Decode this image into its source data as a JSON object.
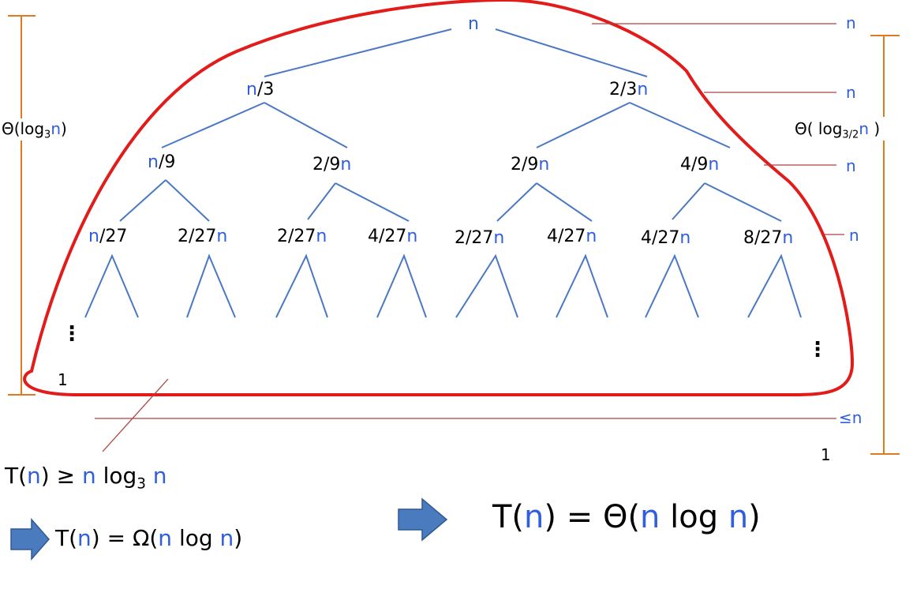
{
  "tree": {
    "root": "n",
    "level1": [
      {
        "pre": "n",
        "post": "/3"
      },
      {
        "pre": "2/3",
        "post": "n"
      }
    ],
    "level2": [
      {
        "pre": "n",
        "post": "/9"
      },
      {
        "pre": "2/9",
        "post": "n"
      },
      {
        "pre": "2/9",
        "post": "n"
      },
      {
        "pre": "4/9",
        "post": "n"
      }
    ],
    "level3": [
      {
        "pre": "n",
        "post": "/27"
      },
      {
        "pre": "2/27",
        "post": "n"
      },
      {
        "pre": "2/27",
        "post": "n"
      },
      {
        "pre": "4/27",
        "post": "n"
      },
      {
        "pre": "2/27",
        "post": "n"
      },
      {
        "pre": "4/27",
        "post": "n"
      },
      {
        "pre": "4/27",
        "post": "n"
      },
      {
        "pre": "8/27",
        "post": "n"
      }
    ],
    "left_leaf": "1",
    "right_leaf": "1",
    "vdots": "⋮"
  },
  "level_costs": [
    "n",
    "n",
    "n",
    "n",
    "≤n"
  ],
  "left_height": {
    "a": "Θ(log",
    "sub": "3",
    "n": "n",
    "b": ")"
  },
  "right_height": {
    "a": "Θ( log",
    "sub": "3/2",
    "n": "n",
    "b": " )"
  },
  "bound_lower": {
    "t": "T(",
    "n1": "n",
    "mid": ") ≥ ",
    "n2": "n",
    "log": " log",
    "sub": "3",
    "sp": " ",
    "n3": "n"
  },
  "omega_line": {
    "t": "T(",
    "n1": "n",
    "mid": ") = Ω(",
    "n2": "n",
    "log": " log ",
    "n3": "n",
    "end": ")"
  },
  "theta_line": {
    "t": "T(",
    "n1": "n",
    "mid": ") = Θ(",
    "n2": "n",
    "log": " log ",
    "n3": "n",
    "end": ")"
  },
  "colors": {
    "edge": "#4a78c2",
    "brace": "#e07a20",
    "outline": "#e21b1b",
    "cost_line": "#b04040",
    "arrow": "#4a7bbf",
    "var": "#2f5fe0"
  }
}
